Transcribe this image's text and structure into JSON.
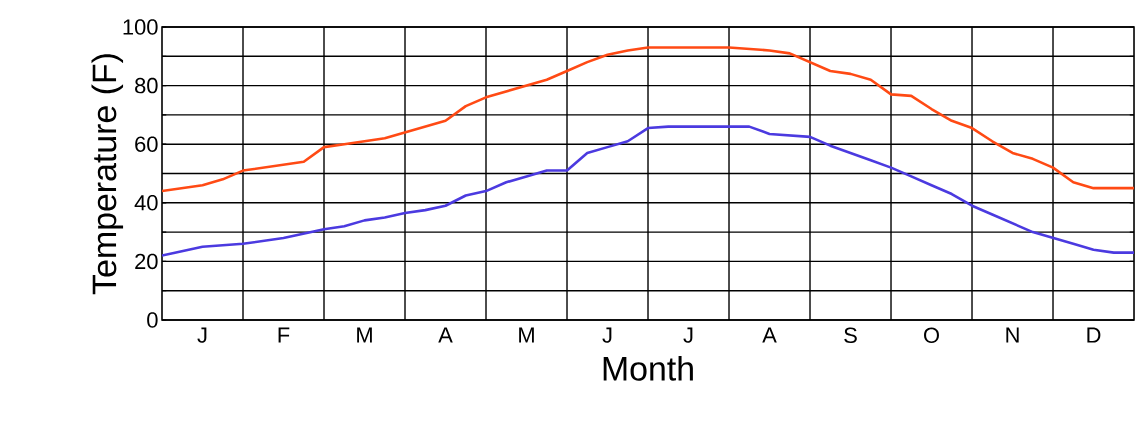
{
  "chart_data": {
    "type": "line",
    "xlabel": "Month",
    "ylabel": "Temperature (F)",
    "categories": [
      null,
      null,
      "J",
      null,
      null,
      null,
      "F",
      null,
      null,
      null,
      "M",
      null,
      null,
      null,
      "A",
      null,
      null,
      null,
      "M",
      null,
      null,
      null,
      "J",
      null,
      null,
      null,
      "J",
      null,
      null,
      null,
      "A",
      null,
      null,
      null,
      "S",
      null,
      null,
      null,
      "O",
      null,
      null,
      null,
      "N",
      null,
      null,
      null,
      "D",
      null,
      null
    ],
    "ylim": [
      0,
      100
    ],
    "yticks": [
      0,
      {
        "value": 10,
        "label": null
      },
      20,
      {
        "value": 30,
        "label": null
      },
      40,
      {
        "value": 50,
        "label": null
      },
      60,
      {
        "value": 70,
        "label": null
      },
      80,
      {
        "value": 90,
        "label": null
      },
      100
    ],
    "grid": true,
    "marker": "none",
    "line_style": "solid",
    "series": [
      {
        "color": "#ff4a14",
        "values": [
          44,
          45,
          46,
          48,
          51,
          52,
          53,
          54,
          59,
          60,
          61,
          62,
          64,
          66,
          68,
          73,
          76,
          78,
          80,
          82,
          85,
          88,
          90.5,
          92,
          93,
          93,
          93,
          93,
          93,
          92.5,
          92,
          91,
          88,
          85,
          84,
          82,
          77,
          76.5,
          72,
          68,
          65.5,
          61,
          57,
          55,
          52,
          47,
          45,
          45,
          45
        ]
      },
      {
        "color": "#4b3ae0",
        "values": [
          22,
          23.5,
          25,
          25.5,
          26,
          27,
          28,
          29.5,
          31,
          32,
          34,
          35,
          36.5,
          37.5,
          39,
          42.5,
          44,
          47,
          49,
          51,
          51,
          57,
          59,
          61,
          65.5,
          66,
          66,
          66,
          66,
          66,
          63.5,
          63,
          62.5,
          59.5,
          57,
          54.5,
          52,
          49,
          46,
          43,
          39,
          36,
          33,
          30,
          28,
          26,
          24,
          23,
          23
        ]
      }
    ]
  }
}
